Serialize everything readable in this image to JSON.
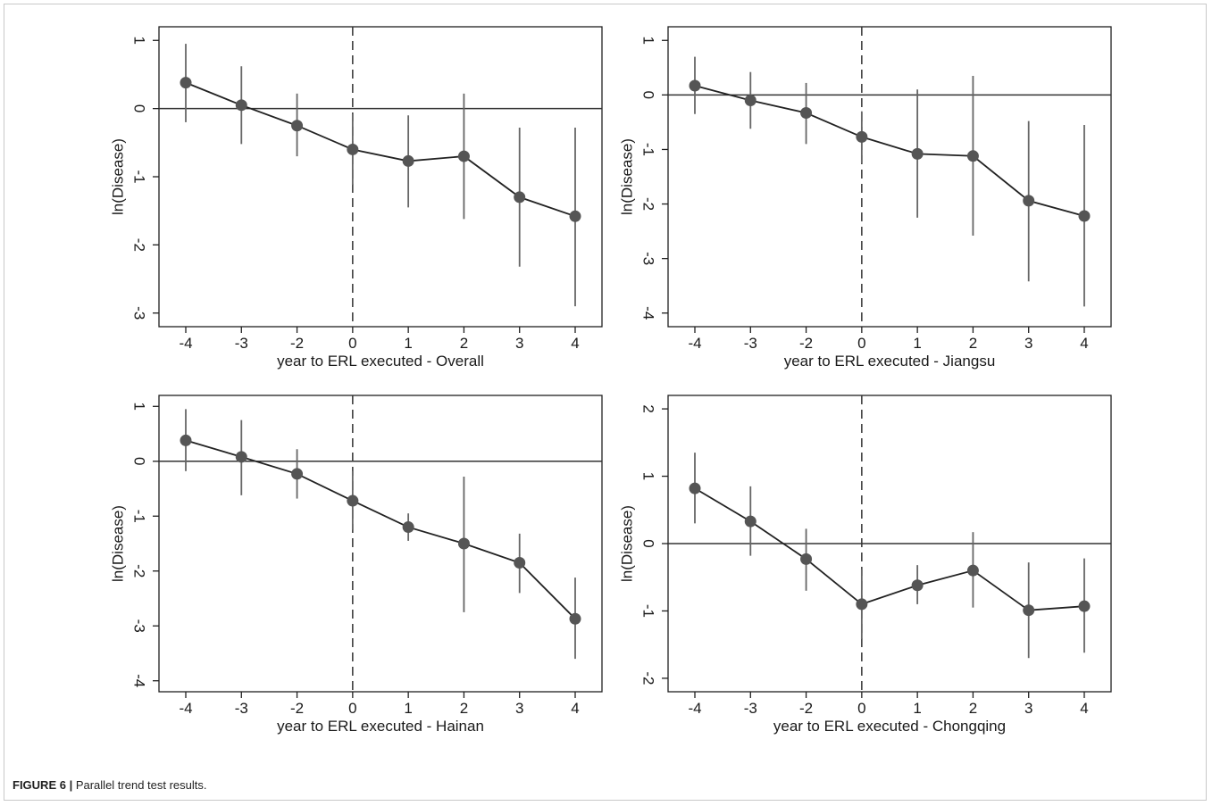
{
  "figure": {
    "label": "FIGURE 6 |",
    "caption": "Parallel trend test results."
  },
  "chart_data": [
    {
      "type": "scatter",
      "xlabel": "year to ERL executed - Overall",
      "ylabel": "ln(Disease)",
      "categories": [
        "-4",
        "-3",
        "-2",
        "0",
        "1",
        "2",
        "3",
        "4"
      ],
      "y": [
        0.38,
        0.05,
        -0.25,
        -0.6,
        -0.77,
        -0.7,
        -1.3,
        -1.58
      ],
      "ci_low": [
        -0.2,
        -0.52,
        -0.7,
        -1.12,
        -1.45,
        -1.62,
        -2.32,
        -2.9
      ],
      "ci_high": [
        0.95,
        0.62,
        0.22,
        -0.08,
        -0.1,
        0.22,
        -0.28,
        -0.28
      ],
      "ylim": [
        -3.2,
        1.2
      ],
      "yticks": [
        1,
        0,
        -1,
        -2,
        -3
      ],
      "ytick_labels": [
        "1",
        "0",
        "-1",
        "-2",
        "-3"
      ],
      "reference_line_y": 0,
      "event_marker": "0",
      "grid": false
    },
    {
      "type": "scatter",
      "xlabel": "year to ERL executed - Jiangsu",
      "ylabel": "ln(Disease)",
      "categories": [
        "-4",
        "-3",
        "-2",
        "0",
        "1",
        "2",
        "3",
        "4"
      ],
      "y": [
        0.17,
        -0.1,
        -0.33,
        -0.77,
        -1.08,
        -1.12,
        -1.94,
        -2.22
      ],
      "ci_low": [
        -0.35,
        -0.62,
        -0.9,
        -1.25,
        -2.25,
        -2.58,
        -3.42,
        -3.88
      ],
      "ci_high": [
        0.7,
        0.42,
        0.22,
        -0.3,
        0.1,
        0.35,
        -0.48,
        -0.55
      ],
      "ylim": [
        -4.25,
        1.25
      ],
      "yticks": [
        1,
        0,
        -1,
        -2,
        -3,
        -4
      ],
      "ytick_labels": [
        "1",
        "0",
        "-1",
        "-2",
        "-3",
        "-4"
      ],
      "reference_line_y": 0,
      "event_marker": "0",
      "grid": false
    },
    {
      "type": "scatter",
      "xlabel": "year to ERL executed - Hainan",
      "ylabel": "ln(Disease)",
      "categories": [
        "-4",
        "-3",
        "-2",
        "0",
        "1",
        "2",
        "3",
        "4"
      ],
      "y": [
        0.38,
        0.08,
        -0.23,
        -0.72,
        -1.2,
        -1.5,
        -1.85,
        -2.87
      ],
      "ci_low": [
        -0.18,
        -0.62,
        -0.68,
        -1.25,
        -1.45,
        -2.75,
        -2.4,
        -3.6
      ],
      "ci_high": [
        0.95,
        0.75,
        0.22,
        -0.18,
        -0.95,
        -0.28,
        -1.32,
        -2.12
      ],
      "ylim": [
        -4.2,
        1.2
      ],
      "yticks": [
        1,
        0,
        -1,
        -2,
        -3,
        -4
      ],
      "ytick_labels": [
        "1",
        "0",
        "-1",
        "-2",
        "-3",
        "-4"
      ],
      "reference_line_y": 0,
      "event_marker": "0",
      "grid": false
    },
    {
      "type": "scatter",
      "xlabel": "year to ERL executed - Chongqing",
      "ylabel": "ln(Disease)",
      "categories": [
        "-4",
        "-3",
        "-2",
        "0",
        "1",
        "2",
        "3",
        "4"
      ],
      "y": [
        0.82,
        0.33,
        -0.23,
        -0.9,
        -0.62,
        -0.4,
        -0.99,
        -0.93
      ],
      "ci_low": [
        0.3,
        -0.18,
        -0.7,
        -1.42,
        -0.9,
        -0.95,
        -1.7,
        -1.62
      ],
      "ci_high": [
        1.35,
        0.85,
        0.22,
        -0.38,
        -0.32,
        0.17,
        -0.28,
        -0.22
      ],
      "ylim": [
        -2.2,
        2.2
      ],
      "yticks": [
        2,
        1,
        0,
        -1,
        -2
      ],
      "ytick_labels": [
        "2",
        "1",
        "0",
        "-1",
        "-2"
      ],
      "reference_line_y": 0,
      "event_marker": "0",
      "grid": false
    }
  ]
}
